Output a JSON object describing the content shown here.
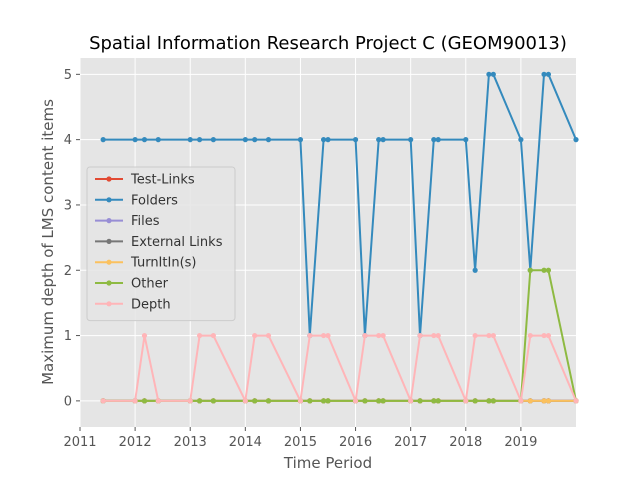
{
  "chart_data": {
    "type": "line",
    "title": "Spatial Information Research Project C (GEOM90013)",
    "xlabel": "Time Period",
    "ylabel": "Maximum depth of LMS content items",
    "xlim": [
      2011.0,
      2020.0
    ],
    "ylim": [
      -0.4,
      5.25
    ],
    "xticks": [
      2011,
      2012,
      2013,
      2014,
      2015,
      2016,
      2017,
      2018,
      2019
    ],
    "yticks": [
      0,
      1,
      2,
      3,
      4,
      5
    ],
    "grid": true,
    "legend_position": "center-left",
    "x": [
      2011.42,
      2012.0,
      2012.17,
      2012.42,
      2013.0,
      2013.17,
      2013.42,
      2014.0,
      2014.17,
      2014.42,
      2015.0,
      2015.17,
      2015.42,
      2015.5,
      2016.0,
      2016.17,
      2016.42,
      2016.5,
      2017.0,
      2017.17,
      2017.42,
      2017.5,
      2018.0,
      2018.17,
      2018.42,
      2018.5,
      2019.0,
      2019.17,
      2019.42,
      2019.5,
      2020.0
    ],
    "series": [
      {
        "name": "Test-Links",
        "color": "#E24A33",
        "values": [
          0,
          0,
          0,
          0,
          0,
          0,
          0,
          0,
          0,
          0,
          0,
          0,
          0,
          0,
          0,
          0,
          0,
          0,
          0,
          0,
          0,
          0,
          0,
          0,
          0,
          0,
          0,
          0,
          0,
          0,
          0
        ]
      },
      {
        "name": "Folders",
        "color": "#348ABD",
        "values": [
          4,
          4,
          4,
          4,
          4,
          4,
          4,
          4,
          4,
          4,
          4,
          1,
          4,
          4,
          4,
          1,
          4,
          4,
          4,
          1,
          4,
          4,
          4,
          2,
          5,
          5,
          4,
          2,
          5,
          5,
          4
        ]
      },
      {
        "name": "Files",
        "color": "#988ED5",
        "values": [
          0,
          0,
          0,
          0,
          0,
          0,
          0,
          0,
          0,
          0,
          0,
          0,
          0,
          0,
          0,
          0,
          0,
          0,
          0,
          0,
          0,
          0,
          0,
          0,
          0,
          0,
          0,
          0,
          0,
          0,
          0
        ]
      },
      {
        "name": "External Links",
        "color": "#777777",
        "values": [
          0,
          0,
          0,
          0,
          0,
          0,
          0,
          0,
          0,
          0,
          0,
          0,
          0,
          0,
          0,
          0,
          0,
          0,
          0,
          0,
          0,
          0,
          0,
          0,
          0,
          0,
          0,
          0,
          0,
          0,
          0
        ]
      },
      {
        "name": "TurnItIn(s)",
        "color": "#FBC15E",
        "values": [
          0,
          0,
          0,
          0,
          0,
          0,
          0,
          0,
          0,
          0,
          0,
          0,
          0,
          0,
          0,
          0,
          0,
          0,
          0,
          0,
          0,
          0,
          0,
          0,
          0,
          0,
          0,
          0,
          0,
          0,
          0
        ]
      },
      {
        "name": "Other",
        "color": "#8EBA42",
        "values": [
          0,
          0,
          0,
          0,
          0,
          0,
          0,
          0,
          0,
          0,
          0,
          0,
          0,
          0,
          0,
          0,
          0,
          0,
          0,
          0,
          0,
          0,
          0,
          0,
          0,
          0,
          0,
          2,
          2,
          2,
          0
        ]
      },
      {
        "name": "Depth",
        "color": "#FFB5B8",
        "values": [
          0,
          0,
          1,
          0,
          0,
          1,
          1,
          0,
          1,
          1,
          0,
          1,
          1,
          1,
          0,
          1,
          1,
          1,
          0,
          1,
          1,
          1,
          0,
          1,
          1,
          1,
          0,
          1,
          1,
          1,
          0
        ]
      }
    ]
  }
}
